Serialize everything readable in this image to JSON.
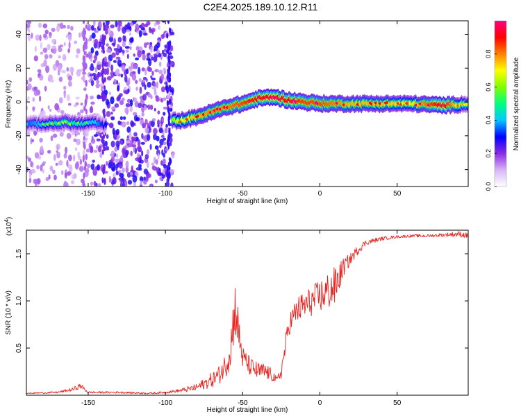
{
  "title": "C2E4.2025.189.10.12.R11",
  "chart_data": [
    {
      "type": "heatmap",
      "xlabel": "Height of straight line (km)",
      "ylabel": "Frequency (Hz)",
      "xlim": [
        -190,
        96
      ],
      "ylim": [
        -50,
        48
      ],
      "xticks": [
        -150,
        -100,
        -50,
        0,
        50
      ],
      "yticks": [
        -40,
        -20,
        0,
        20,
        40
      ],
      "colorbar": {
        "label": "Normalized spectral amplitude",
        "range": [
          0,
          1
        ],
        "ticks": [
          "0.0",
          "0.2",
          "0.4",
          "0.6",
          "0.8"
        ],
        "tick_values": [
          0.0,
          0.2,
          0.4,
          0.6,
          0.8
        ],
        "colormap": [
          "#ffffff",
          "#d8b4f8",
          "#8a2be2",
          "#0000ff",
          "#00c8ff",
          "#00ff80",
          "#80ff00",
          "#ffff00",
          "#ff8000",
          "#ff0000",
          "#ff007f"
        ]
      },
      "ridge": {
        "x": [
          -188,
          -175,
          -165,
          -155,
          -145,
          -140,
          -95,
          -90,
          -80,
          -70,
          -60,
          -50,
          -40,
          -30,
          -20,
          -10,
          0,
          10,
          20,
          40,
          60,
          80,
          96
        ],
        "y": [
          -13,
          -13,
          -12,
          -13,
          -12,
          -14,
          -11,
          -11,
          -9,
          -6,
          -3,
          -1,
          2,
          3,
          1,
          0,
          -1,
          -1,
          -1,
          -1,
          -1,
          -2,
          -1
        ],
        "amp": [
          0.35,
          0.45,
          0.5,
          0.45,
          0.4,
          0.3,
          0.6,
          0.7,
          0.75,
          0.8,
          0.8,
          0.85,
          0.9,
          0.95,
          0.9,
          0.85,
          0.85,
          0.8,
          0.75,
          0.75,
          0.7,
          0.95,
          0.5
        ]
      },
      "noise_bands": [
        [
          -190,
          -148
        ],
        [
          -148,
          -95
        ]
      ]
    },
    {
      "type": "line",
      "xlabel": "Height of straight line (km)",
      "ylabel": "SNR (10 * v/v)",
      "exponent_label": "(x10",
      "exponent_sup": "4",
      "exponent_close": ")",
      "xlim": [
        -190,
        96
      ],
      "ylim": [
        0,
        1.75
      ],
      "xticks": [
        -150,
        -100,
        -50,
        0,
        50
      ],
      "yticks": [
        0.5,
        1.0,
        1.5
      ],
      "ytick_labels": [
        "0.5",
        "1.0",
        "1.5"
      ],
      "color": "#e8231f",
      "series": [
        {
          "x": [
            -190,
            -170,
            -160,
            -155,
            -150,
            -130,
            -110,
            -100,
            -90,
            -80,
            -75,
            -70,
            -65,
            -60,
            -57,
            -55,
            -53,
            -50,
            -45,
            -40,
            -35,
            -30,
            -28,
            -25,
            -22,
            -20,
            -15,
            -10,
            -5,
            0,
            5,
            10,
            15,
            20,
            25,
            30,
            40,
            50,
            60,
            70,
            80,
            90,
            96
          ],
          "y": [
            0.02,
            0.03,
            0.06,
            0.1,
            0.03,
            0.03,
            0.02,
            0.03,
            0.05,
            0.08,
            0.12,
            0.16,
            0.22,
            0.35,
            0.6,
            0.95,
            0.7,
            0.4,
            0.3,
            0.25,
            0.25,
            0.2,
            0.15,
            0.25,
            0.55,
            0.75,
            0.9,
            0.95,
            1.0,
            1.05,
            1.1,
            1.15,
            1.35,
            1.45,
            1.55,
            1.62,
            1.66,
            1.68,
            1.69,
            1.69,
            1.7,
            1.71,
            1.69
          ],
          "amp": [
            0.005,
            0.01,
            0.02,
            0.03,
            0.01,
            0.01,
            0.01,
            0.01,
            0.02,
            0.04,
            0.06,
            0.08,
            0.1,
            0.14,
            0.28,
            0.3,
            0.25,
            0.12,
            0.1,
            0.1,
            0.09,
            0.06,
            0.04,
            0.08,
            0.12,
            0.12,
            0.14,
            0.16,
            0.16,
            0.18,
            0.2,
            0.22,
            0.1,
            0.06,
            0.05,
            0.03,
            0.02,
            0.015,
            0.015,
            0.015,
            0.02,
            0.03,
            0.03
          ]
        }
      ]
    }
  ]
}
